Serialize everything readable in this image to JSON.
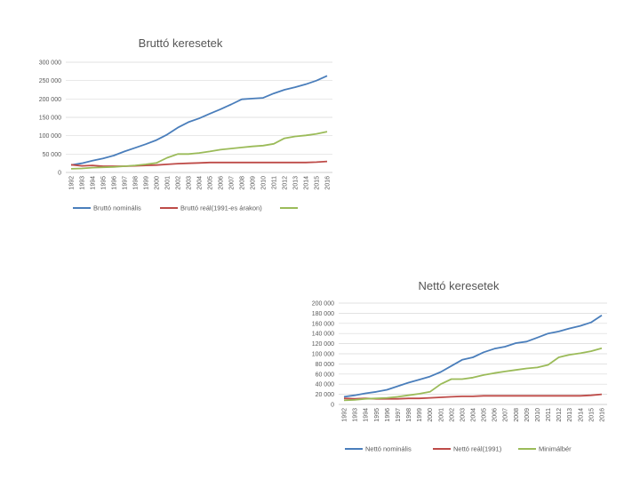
{
  "chart_data": [
    {
      "type": "line",
      "title": "Bruttó keresetek",
      "xlabel": "",
      "ylabel": "",
      "ylim": [
        0,
        300000
      ],
      "yticks": [
        "300 000",
        "250 000",
        "200 000",
        "150 000",
        "100 000",
        "50 000",
        "0"
      ],
      "ytick_values": [
        300000,
        250000,
        200000,
        150000,
        100000,
        50000,
        0
      ],
      "categories": [
        "1992",
        "1993",
        "1994",
        "1995",
        "1996",
        "1997",
        "1998",
        "1999",
        "2000",
        "2001",
        "2002",
        "2003",
        "2004",
        "2005",
        "2006",
        "2007",
        "2008",
        "2009",
        "2010",
        "2011",
        "2012",
        "2013",
        "2014",
        "2015",
        "2016"
      ],
      "grid": true,
      "legend_position": "bottom",
      "series": [
        {
          "name": "Bruttó nominális",
          "color": "#4a7ebb",
          "values": [
            20000,
            25000,
            32000,
            38000,
            46000,
            57000,
            67000,
            77000,
            88000,
            103000,
            122000,
            137000,
            147000,
            160000,
            172000,
            185000,
            199000,
            201000,
            203000,
            215000,
            225000,
            232000,
            240000,
            250000,
            263000
          ]
        },
        {
          "name": "Bruttó reál(1991-es árakon)",
          "color": "#be4b48",
          "values": [
            21000,
            18000,
            19000,
            17000,
            17000,
            17000,
            18000,
            19000,
            20000,
            22000,
            24000,
            25000,
            26000,
            27000,
            27000,
            27000,
            27000,
            27000,
            27000,
            27000,
            27000,
            27000,
            27000,
            28000,
            30000
          ]
        },
        {
          "name": "",
          "color": "#9bbb59",
          "values": [
            10000,
            11000,
            13000,
            14000,
            15000,
            17000,
            19000,
            22000,
            26000,
            40000,
            50000,
            50000,
            53000,
            57000,
            62000,
            65000,
            68000,
            71000,
            73000,
            78000,
            93000,
            98000,
            101000,
            105000,
            111000
          ]
        }
      ]
    },
    {
      "type": "line",
      "title": "Nettó keresetek",
      "xlabel": "",
      "ylabel": "",
      "ylim": [
        0,
        200000
      ],
      "yticks": [
        "200 000",
        "180 000",
        "160 000",
        "140 000",
        "120 000",
        "100 000",
        "80 000",
        "60 000",
        "40 000",
        "20 000",
        "0"
      ],
      "ytick_values": [
        200000,
        180000,
        160000,
        140000,
        120000,
        100000,
        80000,
        60000,
        40000,
        20000,
        0
      ],
      "categories": [
        "1992",
        "1993",
        "1994",
        "1995",
        "1996",
        "1997",
        "1998",
        "1999",
        "2000",
        "2001",
        "2002",
        "2003",
        "2004",
        "2005",
        "2006",
        "2007",
        "2008",
        "2009",
        "2010",
        "2011",
        "2012",
        "2013",
        "2014",
        "2015",
        "2016"
      ],
      "grid": true,
      "legend_position": "bottom",
      "series": [
        {
          "name": "Nettó nominális",
          "color": "#4a7ebb",
          "values": [
            15000,
            18000,
            22000,
            25000,
            29000,
            36000,
            43000,
            49000,
            55000,
            64000,
            76000,
            88000,
            93000,
            103000,
            110000,
            114000,
            121000,
            124000,
            132000,
            140000,
            144000,
            150000,
            155000,
            162000,
            176000
          ]
        },
        {
          "name": "Nettó reál(1991)",
          "color": "#be4b48",
          "values": [
            12000,
            11000,
            12000,
            11000,
            11000,
            11000,
            12000,
            12000,
            13000,
            14000,
            15000,
            16000,
            16000,
            17000,
            17000,
            17000,
            17000,
            17000,
            17000,
            17000,
            17000,
            17000,
            17000,
            18000,
            20000
          ]
        },
        {
          "name": "Minimálbér",
          "color": "#9bbb59",
          "values": [
            8000,
            9000,
            11000,
            12000,
            13000,
            15000,
            18000,
            21000,
            25000,
            40000,
            50000,
            50000,
            53000,
            58000,
            62000,
            65000,
            68000,
            71000,
            73000,
            78000,
            93000,
            98000,
            101000,
            105000,
            111000
          ]
        }
      ]
    }
  ]
}
